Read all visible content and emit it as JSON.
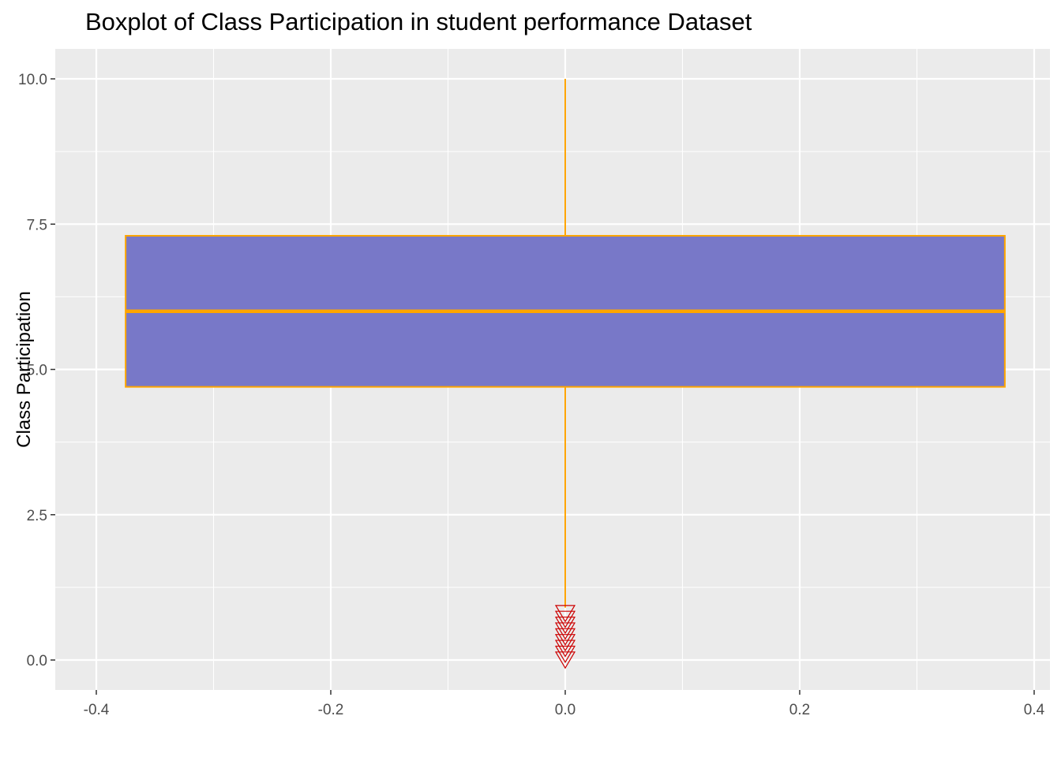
{
  "chart_data": {
    "type": "boxplot",
    "title": "Boxplot of Class Participation in student performance Dataset",
    "xlabel": "",
    "ylabel": "Class Participation",
    "xlim": [
      -0.4,
      0.4
    ],
    "ylim": [
      0,
      10
    ],
    "x_ticks": [
      "-0.4",
      "-0.2",
      "0.0",
      "0.2",
      "0.4"
    ],
    "y_ticks": [
      "0.0",
      "2.5",
      "5.0",
      "7.5",
      "10.0"
    ],
    "grid": true,
    "box": {
      "x_center": 0,
      "x_left": -0.375,
      "x_right": 0.375,
      "whisker_low": 0.9,
      "q1": 4.7,
      "median": 6.0,
      "q3": 7.3,
      "whisker_high": 10.0
    },
    "outliers": [
      0.8,
      0.7,
      0.6,
      0.5,
      0.4,
      0.3,
      0.2,
      0.1,
      0.0
    ],
    "colors": {
      "box_fill": "#7878c8",
      "box_stroke": "#ffa500",
      "outlier": "#cc0000",
      "panel": "#ebebeb",
      "grid": "#ffffff"
    }
  }
}
